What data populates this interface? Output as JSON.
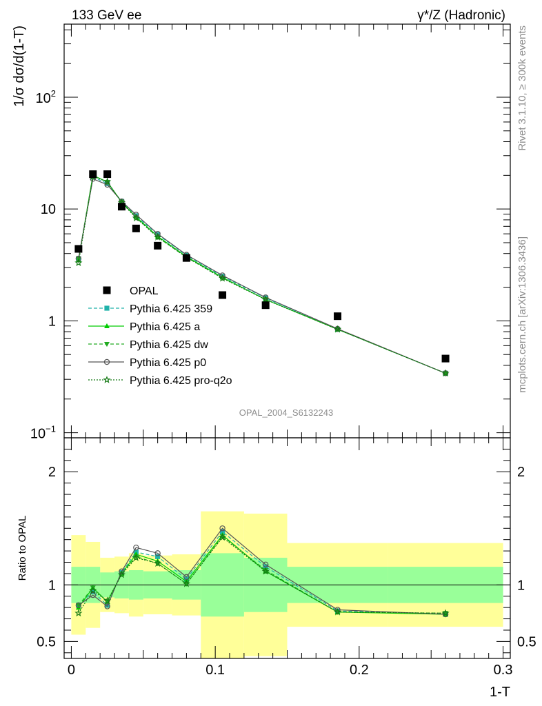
{
  "chart_data": {
    "type": "line",
    "title_left": "133 GeV ee",
    "title_right": "γ*/Z (Hadronic)",
    "xlabel": "1-T",
    "ylabel_top": "1/σ dσ/d(1-T)",
    "ylabel_ratio": "Ratio to OPAL",
    "watermark": "OPAL_2004_S6132243",
    "side_label_top": "Rivet 3.1.10, ≥ 300k events",
    "side_label_bottom": "mcplots.cern.ch [arXiv:1306.3436]",
    "xlim": [
      -0.005,
      0.305
    ],
    "ylim_main": [
      0.09,
      450
    ],
    "ylim_ratio": [
      0.35,
      2.3
    ],
    "x_ticks": [
      "0",
      "0.1",
      "0.2",
      "0.3"
    ],
    "y_ticks_main": [
      {
        "base": "10",
        "exp": "−1"
      },
      {
        "base": "1",
        "exp": ""
      },
      {
        "base": "10",
        "exp": ""
      },
      {
        "base": "10",
        "exp": "2"
      }
    ],
    "y_ticks_ratio": [
      "0.5",
      "1",
      "2"
    ],
    "x": [
      0.005,
      0.015,
      0.025,
      0.035,
      0.045,
      0.06,
      0.08,
      0.105,
      0.135,
      0.185,
      0.26
    ],
    "bin_edges": [
      0.0,
      0.01,
      0.02,
      0.03,
      0.04,
      0.05,
      0.07,
      0.09,
      0.12,
      0.15,
      0.22,
      0.3
    ],
    "data": {
      "name": "OPAL",
      "values": [
        4.4,
        20.5,
        20.5,
        10.5,
        6.7,
        4.7,
        3.65,
        1.7,
        1.38,
        1.1,
        0.46
      ]
    },
    "series": [
      {
        "name": "Pythia 6.425 359",
        "color": "#20b2aa",
        "marker": "square",
        "dash": "5,3",
        "values": [
          3.6,
          19.3,
          16.9,
          11.7,
          8.7,
          5.9,
          3.85,
          2.5,
          1.6,
          0.84,
          0.34
        ],
        "ratio": [
          0.82,
          0.94,
          0.82,
          1.11,
          1.29,
          1.25,
          1.05,
          1.47,
          1.16,
          0.77,
          0.74
        ]
      },
      {
        "name": "Pythia 6.425 a",
        "color": "#00cc00",
        "marker": "triangle-up",
        "dash": "",
        "values": [
          3.5,
          20.0,
          17.5,
          11.5,
          8.5,
          5.7,
          3.75,
          2.45,
          1.55,
          0.84,
          0.34
        ],
        "ratio": [
          0.8,
          0.975,
          0.85,
          1.1,
          1.27,
          1.21,
          1.03,
          1.44,
          1.12,
          0.76,
          0.74
        ]
      },
      {
        "name": "Pythia 6.425 dw",
        "color": "#22aa22",
        "marker": "triangle-down",
        "dash": "5,3",
        "values": [
          3.6,
          20.0,
          17.4,
          11.6,
          8.4,
          5.6,
          3.7,
          2.42,
          1.56,
          0.84,
          0.34
        ],
        "ratio": [
          0.82,
          0.975,
          0.85,
          1.1,
          1.25,
          1.19,
          1.01,
          1.43,
          1.13,
          0.76,
          0.75
        ]
      },
      {
        "name": "Pythia 6.425 p0",
        "color": "#555555",
        "marker": "circle-open",
        "dash": "",
        "values": [
          3.6,
          18.6,
          16.5,
          11.7,
          8.9,
          6.0,
          3.9,
          2.55,
          1.62,
          0.85,
          0.34
        ],
        "ratio": [
          0.82,
          0.91,
          0.81,
          1.12,
          1.33,
          1.28,
          1.07,
          1.5,
          1.18,
          0.78,
          0.74
        ]
      },
      {
        "name": "Pythia 6.425 pro-q2o",
        "color": "#117711",
        "marker": "star",
        "dash": "2,2",
        "values": [
          3.3,
          19.5,
          17.6,
          11.4,
          8.3,
          5.6,
          3.7,
          2.4,
          1.55,
          0.84,
          0.34
        ],
        "ratio": [
          0.75,
          0.95,
          0.86,
          1.09,
          1.24,
          1.19,
          1.01,
          1.42,
          1.12,
          0.76,
          0.75
        ]
      }
    ],
    "bands": {
      "inner": [
        [
          0.84,
          1.16
        ],
        [
          0.84,
          1.16
        ],
        [
          0.89,
          1.11
        ],
        [
          0.88,
          1.12
        ],
        [
          0.87,
          1.13
        ],
        [
          0.88,
          1.12
        ],
        [
          0.87,
          1.13
        ],
        [
          0.72,
          1.28
        ],
        [
          0.76,
          1.24
        ],
        [
          0.84,
          1.16
        ],
        [
          0.84,
          1.16
        ]
      ],
      "outer": [
        [
          0.56,
          1.44
        ],
        [
          0.62,
          1.38
        ],
        [
          0.76,
          1.24
        ],
        [
          0.75,
          1.25
        ],
        [
          0.72,
          1.28
        ],
        [
          0.74,
          1.26
        ],
        [
          0.73,
          1.27
        ],
        [
          0.35,
          1.65
        ],
        [
          0.37,
          1.63
        ],
        [
          0.63,
          1.37
        ],
        [
          0.63,
          1.37
        ]
      ]
    }
  }
}
